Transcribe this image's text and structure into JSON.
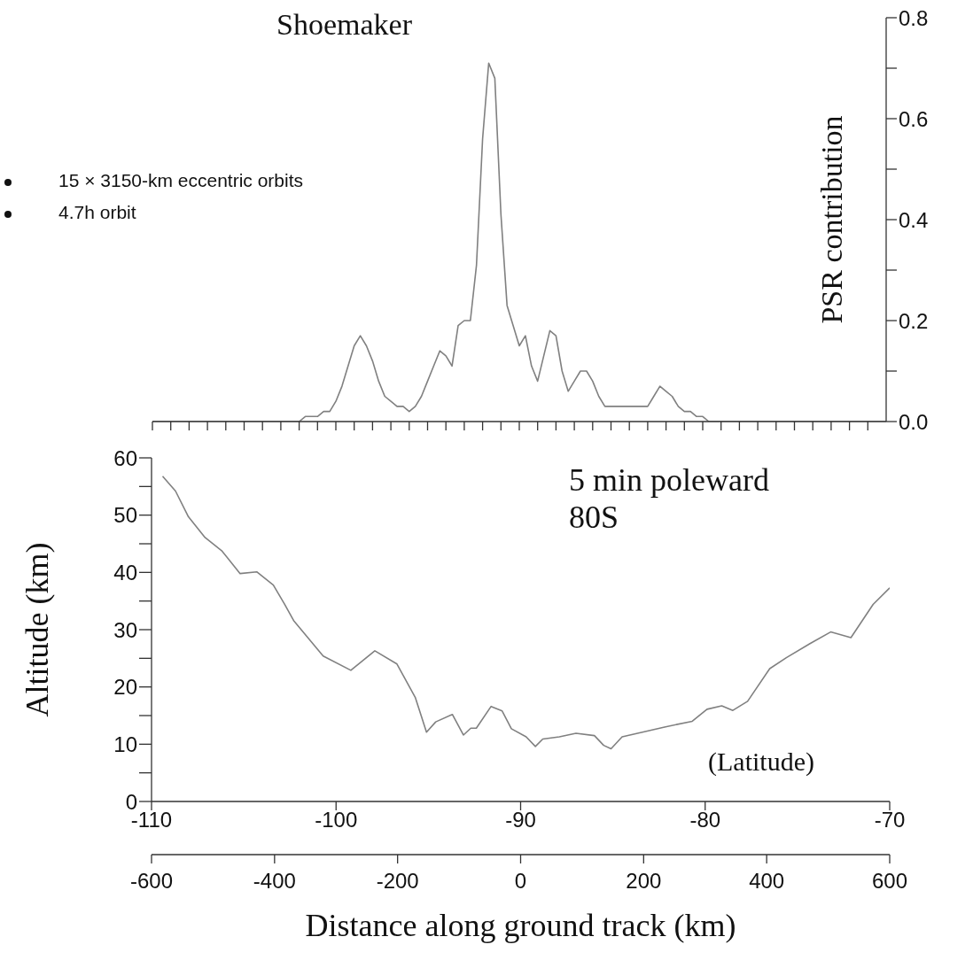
{
  "chart_data": [
    {
      "type": "line",
      "ylabel": "PSR contribution",
      "categories": [
        null,
        null,
        null,
        null,
        null,
        null,
        null,
        null,
        null,
        null,
        null,
        null,
        null,
        null,
        null,
        null,
        null,
        null,
        null,
        null,
        null,
        null,
        null,
        null,
        null,
        null,
        null,
        null,
        null,
        null,
        null,
        null,
        null,
        null,
        null,
        null,
        null,
        null,
        null,
        null,
        null,
        null,
        null,
        null,
        null,
        null,
        null,
        null,
        null,
        null,
        null,
        null,
        null,
        null,
        null,
        null,
        null,
        null,
        null,
        null,
        null,
        null,
        null,
        null,
        null,
        null,
        null,
        null,
        null,
        null,
        null,
        null,
        null,
        null,
        null,
        null,
        null,
        null,
        null,
        null,
        null,
        null,
        null,
        null,
        null,
        null,
        null,
        null,
        null,
        null,
        null,
        null,
        null,
        null,
        null,
        null,
        null,
        null,
        null,
        null,
        null,
        null,
        null,
        null,
        null,
        null,
        null,
        null,
        null,
        null,
        null,
        null,
        null,
        null,
        null,
        null,
        null,
        null,
        null,
        null,
        null
      ],
      "ylim": [
        0,
        0.8
      ],
      "yticks": [
        {
          "value": 0,
          "label": "0.0"
        },
        {
          "value": 0.1,
          "label": null
        },
        0.2,
        {
          "value": 0.3,
          "label": null
        },
        0.4,
        {
          "value": 0.5,
          "label": null
        },
        0.6,
        {
          "value": 0.7,
          "label": null
        },
        0.8
      ],
      "tick_labels": "y",
      "annotations": [
        "Shoemaker",
        "15 × 3150-km eccentric orbits",
        "4.7h orbit"
      ],
      "series": [
        {
          "color": "#808080",
          "values": [
            0,
            0,
            0,
            0,
            0,
            0,
            0,
            0,
            0,
            0,
            0,
            0,
            0,
            0,
            0,
            0,
            0,
            0,
            0,
            0,
            0,
            0,
            0,
            0,
            0,
            0.01,
            0.01,
            0.01,
            0.02,
            0.02,
            0.04,
            0.07,
            0.11,
            0.15,
            0.17,
            0.15,
            0.12,
            0.08,
            0.05,
            0.04,
            0.03,
            0.03,
            0.02,
            0.03,
            0.05,
            0.08,
            0.11,
            0.14,
            0.13,
            0.11,
            0.19,
            0.2,
            0.2,
            0.31,
            0.56,
            0.71,
            0.68,
            0.41,
            0.23,
            0.19,
            0.15,
            0.17,
            0.11,
            0.08,
            0.13,
            0.18,
            0.17,
            0.1,
            0.06,
            0.08,
            0.1,
            0.1,
            0.08,
            0.05,
            0.03,
            0.03,
            0.03,
            0.03,
            0.03,
            0.03,
            0.03,
            0.03,
            0.05,
            0.07,
            0.06,
            0.05,
            0.03,
            0.02,
            0.02,
            0.01,
            0.01,
            0,
            0,
            0,
            0,
            0,
            0,
            0,
            0,
            0,
            0,
            0,
            0,
            0,
            0,
            0,
            0,
            0,
            0,
            0,
            0,
            0,
            0,
            0,
            0,
            0,
            0,
            0,
            0,
            0,
            0
          ]
        }
      ]
    },
    {
      "type": "line",
      "ylabel": "Altitude (km)",
      "xlabel": "(Latitude)",
      "x2label": "Distance along ground track (km)",
      "xlim": [
        -110,
        -70
      ],
      "xticks": [
        -110,
        -100,
        -90,
        -80,
        -70
      ],
      "x2lim": [
        -600,
        600
      ],
      "x2ticks": [
        -600,
        -400,
        -200,
        0,
        200,
        400,
        600
      ],
      "ylim": [
        0,
        60
      ],
      "yticks": [
        0,
        {
          "value": 5,
          "label": null
        },
        10,
        {
          "value": 15,
          "label": null
        },
        20,
        {
          "value": 25,
          "label": null
        },
        30,
        {
          "value": 35,
          "label": null
        },
        40,
        {
          "value": 45,
          "label": null
        },
        50,
        {
          "value": 55,
          "label": null
        },
        60
      ],
      "annotations": [
        "5 min poleward",
        "80S"
      ],
      "series": [
        {
          "color": "#808080",
          "x": [
            -109.4,
            -108.7,
            -108.0,
            -107.1,
            -106.2,
            -105.2,
            -104.3,
            -103.4,
            -102.8,
            -102.3,
            -100.7,
            -99.2,
            -97.9,
            -96.7,
            -95.7,
            -95.1,
            -94.6,
            -93.7,
            -93.1,
            -92.7,
            -92.4,
            -91.6,
            -91.0,
            -90.5,
            -89.7,
            -89.2,
            -88.8,
            -87.9,
            -87.0,
            -86.0,
            -85.5,
            -85.1,
            -84.5,
            -83.4,
            -82.2,
            -80.7,
            -79.9,
            -79.1,
            -78.5,
            -77.7,
            -76.5,
            -75.6,
            -74.3,
            -73.2,
            -72.1,
            -70.9,
            -70.0
          ],
          "values": [
            56.8,
            54.2,
            49.7,
            46.1,
            43.8,
            39.8,
            40.1,
            37.8,
            34.5,
            31.6,
            25.4,
            22.9,
            26.3,
            24.0,
            18.1,
            12.1,
            13.9,
            15.2,
            11.6,
            12.8,
            12.8,
            16.6,
            15.8,
            12.7,
            11.3,
            9.6,
            10.9,
            11.3,
            11.9,
            11.5,
            9.8,
            9.2,
            11.3,
            12.1,
            13.0,
            14.0,
            16.1,
            16.7,
            15.9,
            17.5,
            23.2,
            25.1,
            27.6,
            29.6,
            28.6,
            34.4,
            37.3
          ]
        }
      ]
    }
  ]
}
